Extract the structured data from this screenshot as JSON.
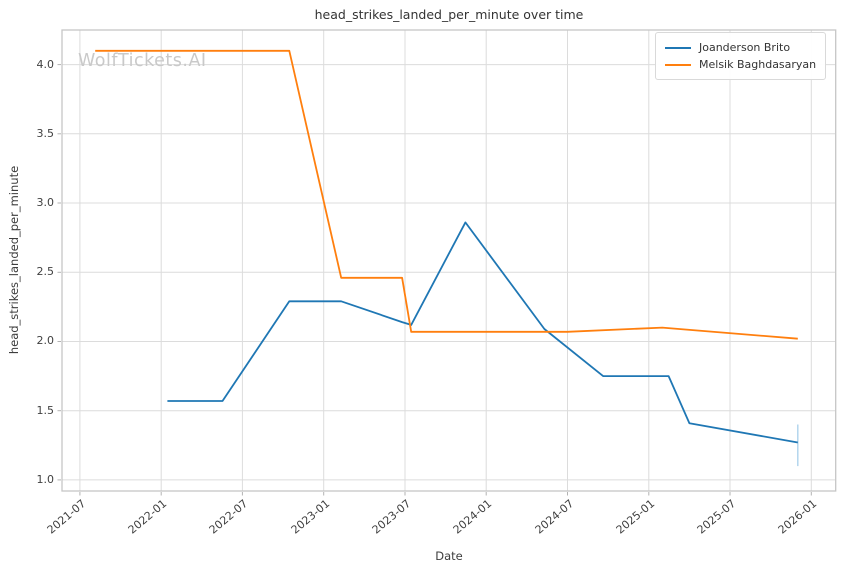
{
  "page": {
    "watermark": "WolfTickets.AI"
  },
  "chart_data": {
    "type": "line",
    "title": "head_strikes_landed_per_minute over time",
    "xlabel": "Date",
    "ylabel": "head_strikes_landed_per_minute",
    "grid": true,
    "legend_position": "upper right",
    "x_ticks": [
      "2021-07",
      "2022-01",
      "2022-07",
      "2023-01",
      "2023-07",
      "2024-01",
      "2024-07",
      "2025-01",
      "2025-07",
      "2026-01"
    ],
    "y_ticks": [
      "1.0",
      "1.5",
      "2.0",
      "2.5",
      "3.0",
      "3.5",
      "4.0"
    ],
    "xlim": [
      2021.39,
      2026.15
    ],
    "ylim": [
      0.92,
      4.25
    ],
    "series": [
      {
        "name": "Joanderson Brito",
        "color": "#1f77b4",
        "points": [
          [
            "2022-01-15",
            1.57
          ],
          [
            "2022-05-17",
            1.57
          ],
          [
            "2022-10-15",
            2.29
          ],
          [
            "2023-02-10",
            2.29
          ],
          [
            "2023-06-25",
            2.14
          ],
          [
            "2023-07-15",
            2.12
          ],
          [
            "2023-11-15",
            2.86
          ],
          [
            "2024-05-10",
            2.09
          ],
          [
            "2024-09-20",
            1.75
          ],
          [
            "2025-02-15",
            1.75
          ],
          [
            "2025-04-01",
            1.41
          ],
          [
            "2025-12-01",
            1.27
          ]
        ],
        "error_bar_final": {
          "date": "2025-12-01",
          "low": 1.1,
          "high": 1.4
        }
      },
      {
        "name": "Melsik Baghdasaryan",
        "color": "#ff7f0e",
        "points": [
          [
            "2021-08-05",
            4.1
          ],
          [
            "2022-10-15",
            4.1
          ],
          [
            "2023-02-10",
            2.46
          ],
          [
            "2023-06-25",
            2.46
          ],
          [
            "2023-07-15",
            2.07
          ],
          [
            "2024-07-01",
            2.07
          ],
          [
            "2025-02-01",
            2.1
          ],
          [
            "2025-12-01",
            2.02
          ]
        ]
      }
    ]
  }
}
